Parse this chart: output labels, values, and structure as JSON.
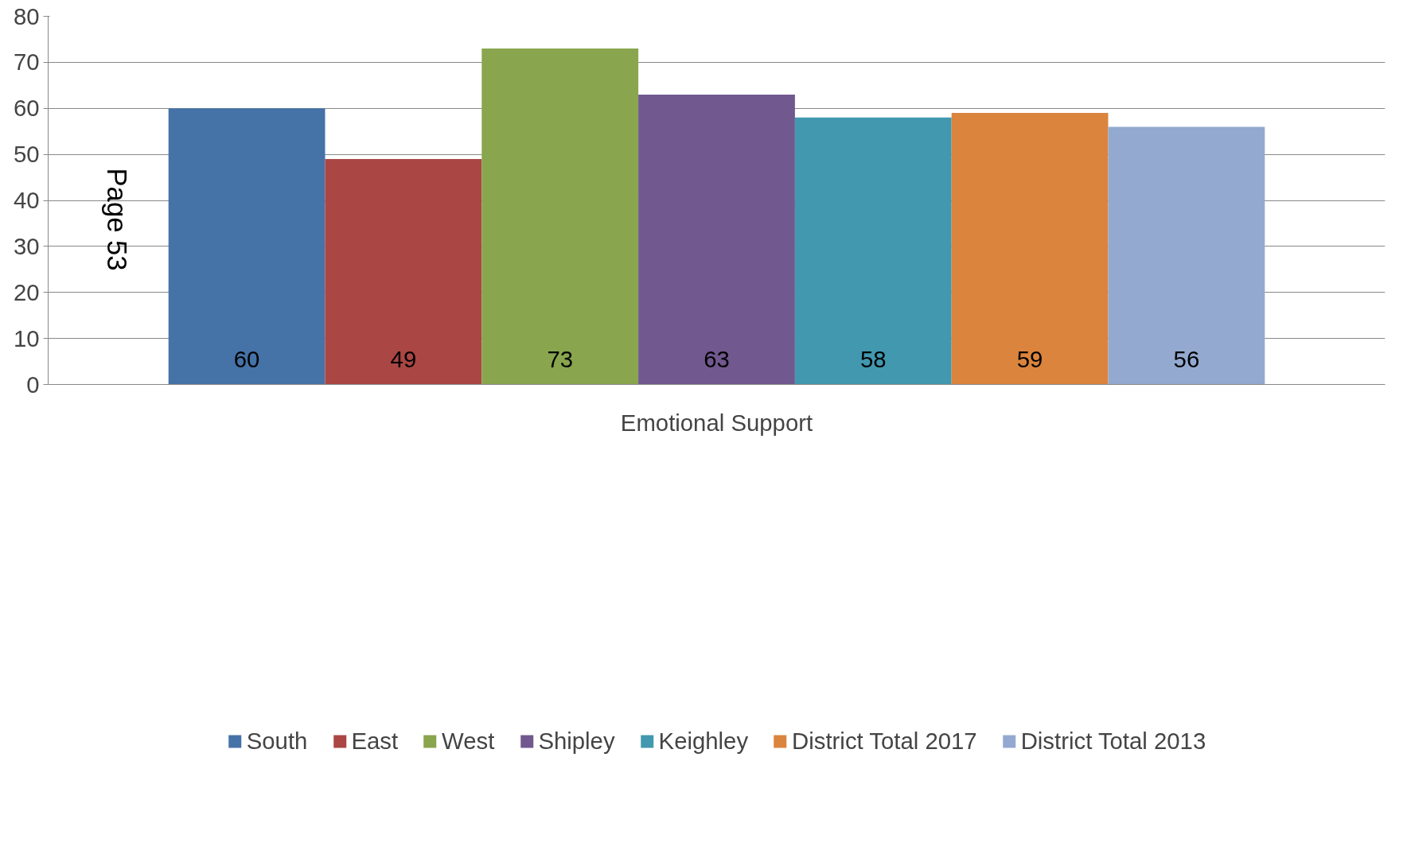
{
  "chart_data": {
    "type": "bar",
    "categories": [
      "Emotional Support"
    ],
    "series": [
      {
        "name": "South",
        "color": "#4572a7",
        "values": [
          60
        ]
      },
      {
        "name": "East",
        "color": "#aa4643",
        "values": [
          49
        ]
      },
      {
        "name": "West",
        "color": "#89a54e",
        "values": [
          73
        ]
      },
      {
        "name": "Shipley",
        "color": "#71588f",
        "values": [
          63
        ]
      },
      {
        "name": "Keighley",
        "color": "#4198af",
        "values": [
          58
        ]
      },
      {
        "name": "District Total 2017",
        "color": "#db843d",
        "values": [
          59
        ]
      },
      {
        "name": "District Total 2013",
        "color": "#93a9cf",
        "values": [
          56
        ]
      }
    ],
    "ylim": [
      0,
      80
    ],
    "yticks": [
      0,
      10,
      20,
      30,
      40,
      50,
      60,
      70,
      80
    ],
    "grid": "y",
    "legend": "bottom",
    "data_labels": true,
    "annotations": [
      "Page 53"
    ]
  }
}
